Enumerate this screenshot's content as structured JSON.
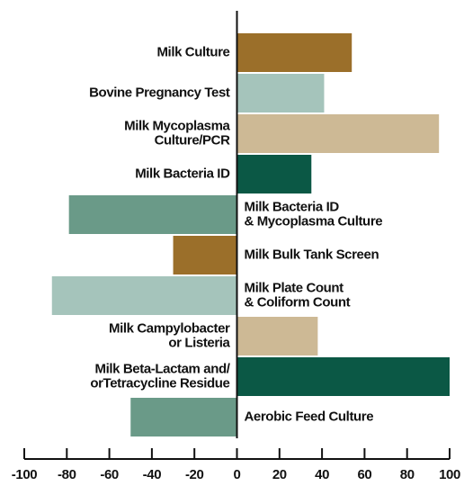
{
  "chart_data": {
    "type": "bar",
    "orientation": "horizontal",
    "categories": [
      "Milk Culture",
      "Bovine Pregnancy Test",
      "Milk Mycoplasma\nCulture/PCR",
      "Milk Bacteria ID",
      "Milk Bacteria ID\n& Mycoplasma Culture",
      "Milk Bulk Tank Screen",
      "Milk Plate Count\n& Coliform Count",
      "Milk Campylobacter\nor Listeria",
      "Milk Beta-Lactam and/\norTetracycline Residue",
      "Aerobic Feed Culture"
    ],
    "values": [
      54,
      41,
      95,
      35,
      -79,
      -30,
      -87,
      38,
      100,
      -50
    ],
    "colors": [
      "#9b6f2a",
      "#a5c4bb",
      "#cdb995",
      "#0b5845",
      "#6a9a88",
      "#9b6f2a",
      "#a5c4bb",
      "#cdb995",
      "#0b5845",
      "#6a9a88"
    ],
    "xlim": [
      -100,
      100
    ],
    "xticks": [
      -100,
      -80,
      -60,
      -40,
      -20,
      0,
      20,
      40,
      60,
      80,
      100
    ]
  }
}
